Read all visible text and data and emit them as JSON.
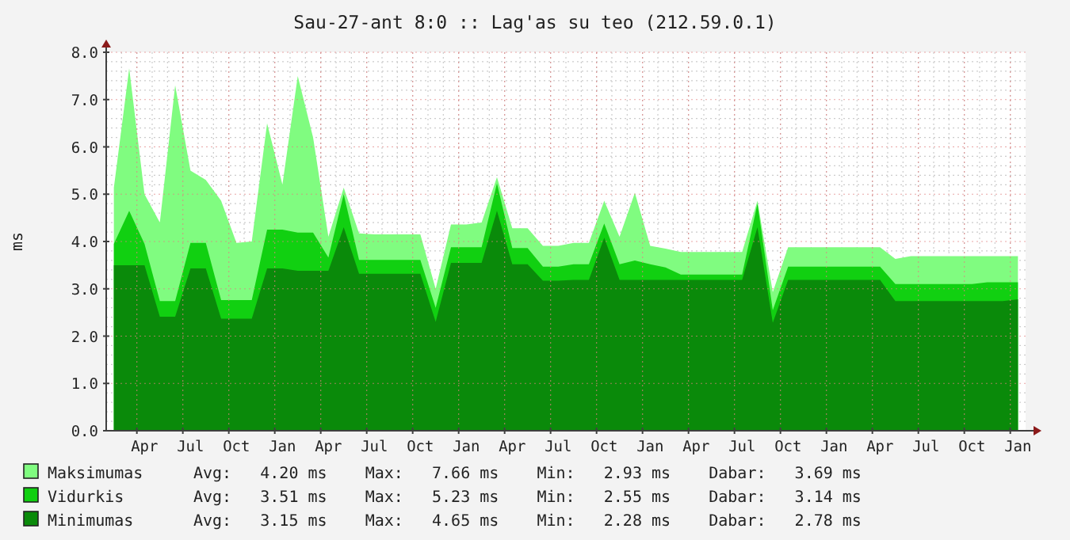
{
  "chart_data": {
    "type": "area",
    "title": "Sau-27-ant 8:0 :: Lag'as su teo (212.59.0.1)",
    "ylabel": "ms",
    "categories": [
      null,
      null,
      "Apr",
      null,
      null,
      "Jul",
      null,
      null,
      "Oct",
      null,
      null,
      "Jan",
      null,
      null,
      "Apr",
      null,
      null,
      "Jul",
      null,
      null,
      "Oct",
      null,
      null,
      "Jan",
      null,
      null,
      "Apr",
      null,
      null,
      "Jul",
      null,
      null,
      "Oct",
      null,
      null,
      "Jan",
      null,
      null,
      "Apr",
      null,
      null,
      "Jul",
      null,
      null,
      "Oct",
      null,
      null,
      "Jan",
      null,
      null,
      "Apr",
      null,
      null,
      "Jul",
      null,
      null,
      "Oct",
      null,
      null,
      "Jan"
    ],
    "series": [
      {
        "name": "Maksimumas",
        "color": "#80fc80",
        "values": [
          5.14,
          7.66,
          5.0,
          4.4,
          7.3,
          5.5,
          5.3,
          4.86,
          3.97,
          4.0,
          6.5,
          5.2,
          7.5,
          6.2,
          4.1,
          5.14,
          4.17,
          4.15,
          4.15,
          4.15,
          4.15,
          3.0,
          4.36,
          4.36,
          4.4,
          5.36,
          4.28,
          4.28,
          3.91,
          3.91,
          3.97,
          3.97,
          4.86,
          4.1,
          5.03,
          3.91,
          3.85,
          3.78,
          3.78,
          3.78,
          3.78,
          3.78,
          4.86,
          2.93,
          3.88,
          3.88,
          3.88,
          3.88,
          3.88,
          3.88,
          3.88,
          3.63,
          3.69,
          3.69,
          3.69,
          3.69,
          3.69,
          3.69,
          3.69,
          3.69
        ]
      },
      {
        "name": "Vidurkis",
        "color": "#11d011",
        "values": [
          3.95,
          4.65,
          3.95,
          2.74,
          2.74,
          3.97,
          3.97,
          2.76,
          2.76,
          2.76,
          4.25,
          4.25,
          4.19,
          4.19,
          3.66,
          5.0,
          3.61,
          3.61,
          3.61,
          3.61,
          3.61,
          2.6,
          3.88,
          3.88,
          3.88,
          5.23,
          3.86,
          3.86,
          3.47,
          3.47,
          3.52,
          3.52,
          4.38,
          3.52,
          3.6,
          3.52,
          3.45,
          3.3,
          3.3,
          3.3,
          3.3,
          3.3,
          4.8,
          2.55,
          3.47,
          3.47,
          3.47,
          3.47,
          3.47,
          3.47,
          3.47,
          3.1,
          3.1,
          3.1,
          3.1,
          3.1,
          3.1,
          3.14,
          3.14,
          3.14
        ]
      },
      {
        "name": "Minimumas",
        "color": "#0a8a0a",
        "values": [
          3.5,
          3.5,
          3.5,
          2.41,
          2.41,
          3.43,
          3.43,
          2.37,
          2.37,
          2.37,
          3.43,
          3.43,
          3.38,
          3.38,
          3.38,
          4.3,
          3.32,
          3.32,
          3.32,
          3.32,
          3.32,
          2.3,
          3.55,
          3.55,
          3.55,
          4.65,
          3.52,
          3.52,
          3.17,
          3.17,
          3.19,
          3.19,
          4.08,
          3.19,
          3.19,
          3.19,
          3.19,
          3.19,
          3.19,
          3.19,
          3.19,
          3.19,
          4.3,
          2.28,
          3.19,
          3.19,
          3.19,
          3.19,
          3.19,
          3.19,
          3.19,
          2.74,
          2.74,
          2.74,
          2.74,
          2.74,
          2.74,
          2.74,
          2.74,
          2.78
        ]
      }
    ],
    "ylim": [
      0,
      8
    ],
    "yticks": [
      {
        "value": 0,
        "label": "0.0"
      },
      {
        "value": 1,
        "label": "1.0"
      },
      {
        "value": 2,
        "label": "2.0"
      },
      {
        "value": 3,
        "label": "3.0"
      },
      {
        "value": 4,
        "label": "4.0"
      },
      {
        "value": 5,
        "label": "5.0"
      },
      {
        "value": 6,
        "label": "6.0"
      },
      {
        "value": 7,
        "label": "7.0"
      },
      {
        "value": 8,
        "label": "8.0"
      }
    ],
    "grid": true,
    "legend": "bottom",
    "annotations": [
      "Avg:   4.20 ms    Max:   7.66 ms    Min:   2.93 ms    Dabar:   3.69 ms",
      "Avg:   3.51 ms    Max:   5.23 ms    Min:   2.55 ms    Dabar:   3.14 ms",
      "Avg:   3.15 ms    Max:   4.65 ms    Min:   2.28 ms    Dabar:   2.78 ms"
    ]
  }
}
